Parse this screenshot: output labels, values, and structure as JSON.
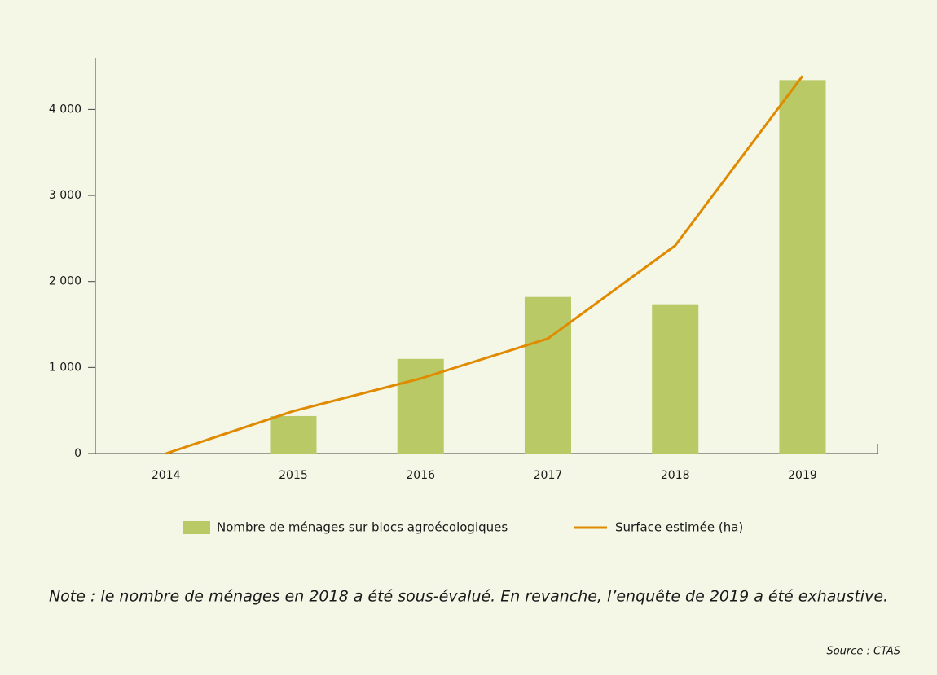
{
  "chart_data": {
    "type": "bar",
    "categories": [
      "2014",
      "2015",
      "2016",
      "2017",
      "2018",
      "2019"
    ],
    "series": [
      {
        "name": "Nombre de ménages sur blocs agroécologiques",
        "type": "bar",
        "color": "#b9c965",
        "values": [
          null,
          436,
          1100,
          1820,
          1735,
          4341
        ]
      },
      {
        "name": "Surface estimée (ha)",
        "type": "line",
        "color": "#e08a00",
        "values": [
          0,
          493,
          872,
          1336,
          2417,
          4389
        ]
      }
    ],
    "ylim": [
      0,
      4600
    ],
    "yticks": [
      0,
      {
        "value": 1000,
        "label": "1 000"
      },
      {
        "value": 2000,
        "label": "2 000"
      },
      {
        "value": 3000,
        "label": "3 000"
      },
      {
        "value": 4000,
        "label": "4 000"
      }
    ],
    "grid": false,
    "legend": "bottom",
    "note": "Note : le nombre de ménages en 2018 a été sous-évalué. En revanche, l’enquête de 2019 a été exhaustive.",
    "source": "Source : CTAS"
  }
}
